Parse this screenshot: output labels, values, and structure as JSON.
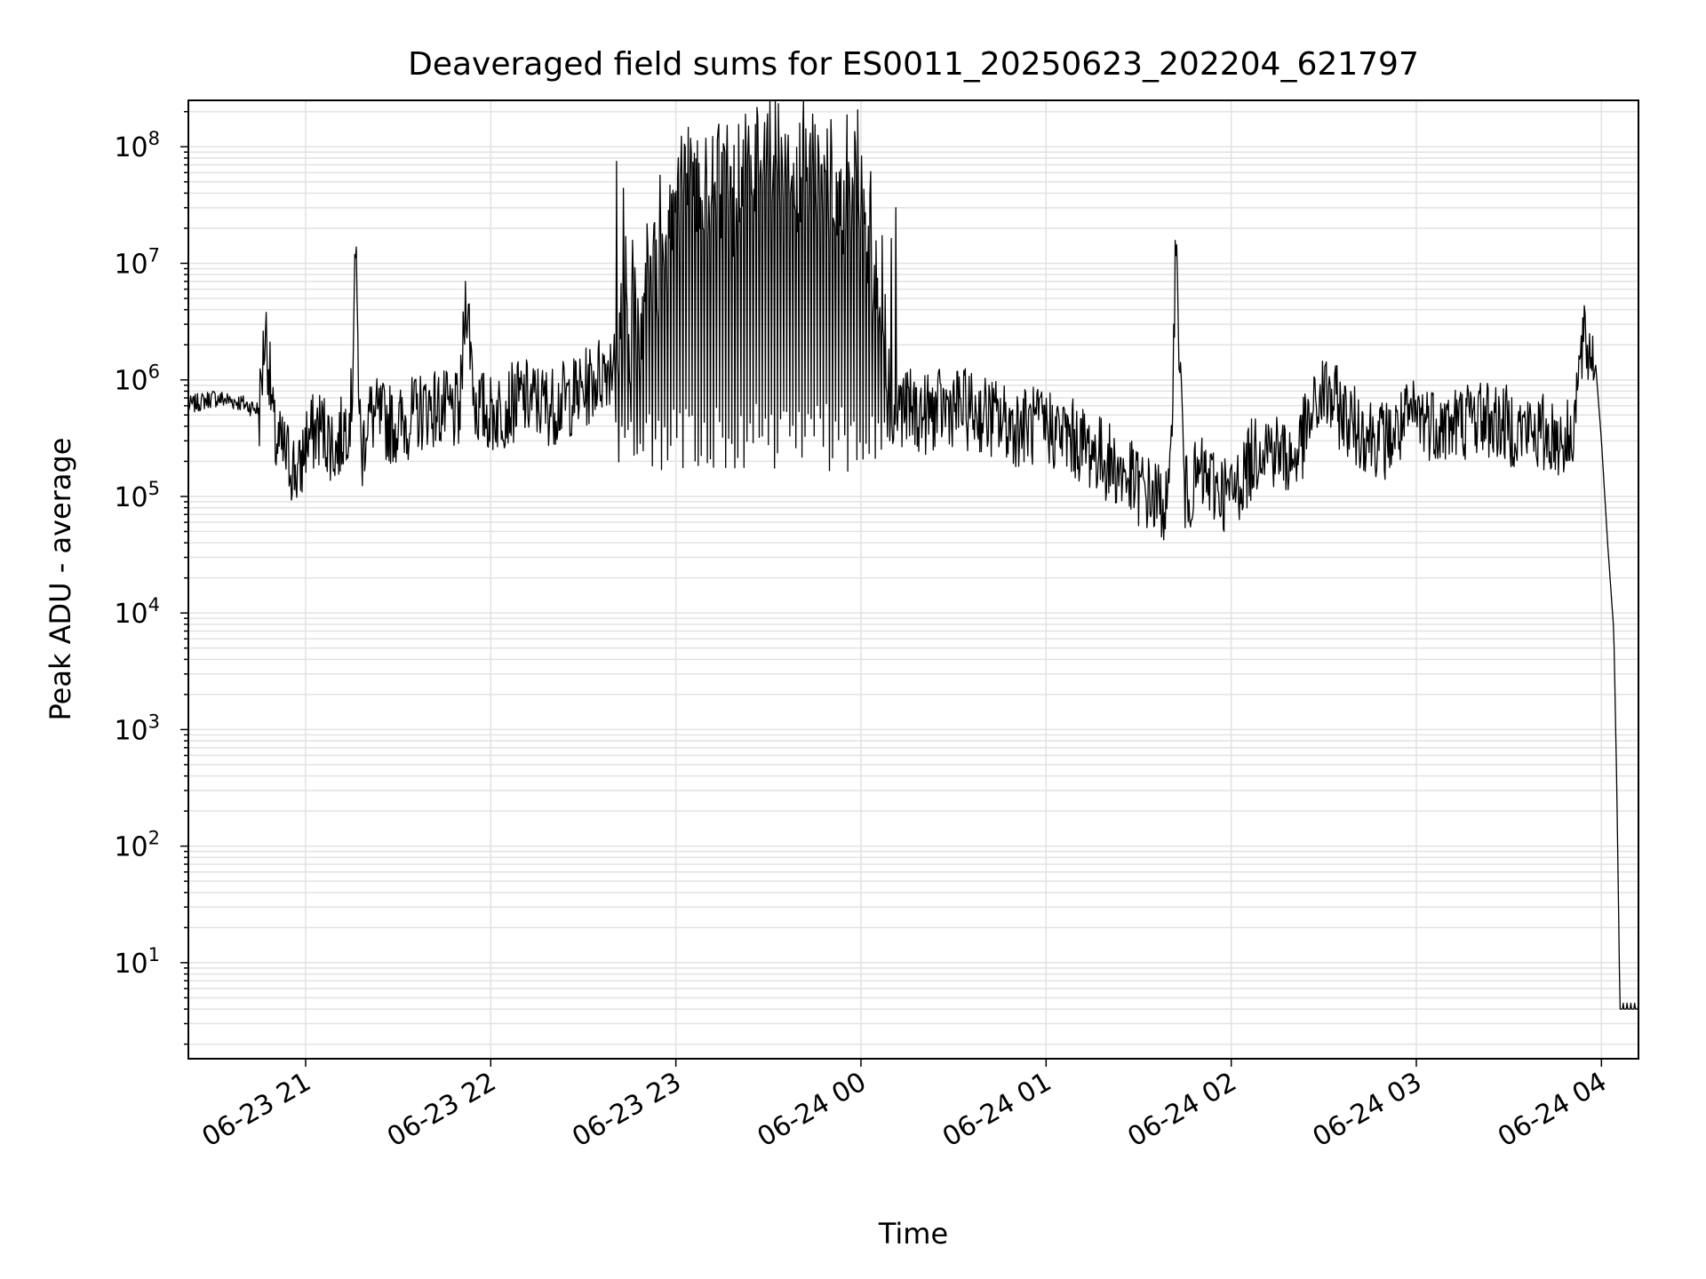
{
  "chart_data": {
    "type": "line",
    "title": "Deaveraged field sums for ES0011_20250623_202204_621797",
    "xlabel": "Time",
    "ylabel": "Peak ADU - average",
    "y_scale": "log",
    "ylim": [
      1.5,
      250000000
    ],
    "xlim": [
      "2025-06-23 20:22",
      "2025-06-24 04:12"
    ],
    "grid": "both",
    "x_ticks": [
      "06-23 21",
      "06-23 22",
      "06-23 23",
      "06-24 00",
      "06-24 01",
      "06-24 02",
      "06-24 03",
      "06-24 04"
    ],
    "y_ticks": [
      {
        "base": "10",
        "exp": "1",
        "value": 10
      },
      {
        "base": "10",
        "exp": "2",
        "value": 100
      },
      {
        "base": "10",
        "exp": "3",
        "value": 1000
      },
      {
        "base": "10",
        "exp": "4",
        "value": 10000
      },
      {
        "base": "10",
        "exp": "5",
        "value": 100000
      },
      {
        "base": "10",
        "exp": "6",
        "value": 1000000
      },
      {
        "base": "10",
        "exp": "7",
        "value": 10000000
      },
      {
        "base": "10",
        "exp": "8",
        "value": 100000000
      }
    ],
    "series": [
      {
        "color": "#000000",
        "x": [
          "2025-06-23 20:22",
          "2025-06-23 20:30",
          "2025-06-23 20:38",
          "2025-06-23 20:45",
          "2025-06-23 20:47",
          "2025-06-23 20:50",
          "2025-06-23 20:55",
          "2025-06-23 20:58",
          "2025-06-23 21:00",
          "2025-06-23 21:05",
          "2025-06-23 21:10",
          "2025-06-23 21:15",
          "2025-06-23 21:16",
          "2025-06-23 21:18",
          "2025-06-23 21:20",
          "2025-06-23 21:30",
          "2025-06-23 21:40",
          "2025-06-23 21:50",
          "2025-06-23 21:52",
          "2025-06-23 21:55",
          "2025-06-23 22:00",
          "2025-06-23 22:10",
          "2025-06-23 22:20",
          "2025-06-23 22:30",
          "2025-06-23 22:40",
          "2025-06-23 22:50",
          "2025-06-23 23:00",
          "2025-06-23 23:10",
          "2025-06-23 23:20",
          "2025-06-23 23:30",
          "2025-06-23 23:40",
          "2025-06-23 23:50",
          "2025-06-24 00:00",
          "2025-06-24 00:10",
          "2025-06-24 00:13",
          "2025-06-24 00:20",
          "2025-06-24 00:30",
          "2025-06-24 00:40",
          "2025-06-24 00:50",
          "2025-06-24 01:00",
          "2025-06-24 01:10",
          "2025-06-24 01:20",
          "2025-06-24 01:30",
          "2025-06-24 01:40",
          "2025-06-24 01:42",
          "2025-06-24 01:45",
          "2025-06-24 01:50",
          "2025-06-24 02:00",
          "2025-06-24 02:10",
          "2025-06-24 02:20",
          "2025-06-24 02:30",
          "2025-06-24 02:40",
          "2025-06-24 02:50",
          "2025-06-24 03:00",
          "2025-06-24 03:10",
          "2025-06-24 03:20",
          "2025-06-24 03:30",
          "2025-06-24 03:40",
          "2025-06-24 03:50",
          "2025-06-24 03:54",
          "2025-06-24 03:58",
          "2025-06-24 04:00",
          "2025-06-24 04:02",
          "2025-06-24 04:04",
          "2025-06-24 04:05",
          "2025-06-24 04:06",
          "2025-06-24 04:12"
        ],
        "y": [
          600000,
          700000,
          650000,
          550000,
          2900000,
          300000,
          200000,
          150000,
          300000,
          400000,
          250000,
          600000,
          16000000,
          200000,
          500000,
          400000,
          600000,
          500000,
          6000000,
          600000,
          500000,
          700000,
          600000,
          800000,
          1500000,
          6000000,
          40000000,
          60000000,
          50000000,
          100000000,
          80000000,
          50000000,
          60000000,
          800000,
          600000,
          500000,
          600000,
          500000,
          400000,
          400000,
          300000,
          200000,
          120000,
          80000,
          14000000,
          100000,
          150000,
          100000,
          300000,
          200000,
          800000,
          400000,
          300000,
          500000,
          400000,
          500000,
          400000,
          350000,
          300000,
          2000000,
          1500000,
          300000,
          40000,
          7000,
          300,
          4,
          4
        ]
      }
    ]
  }
}
